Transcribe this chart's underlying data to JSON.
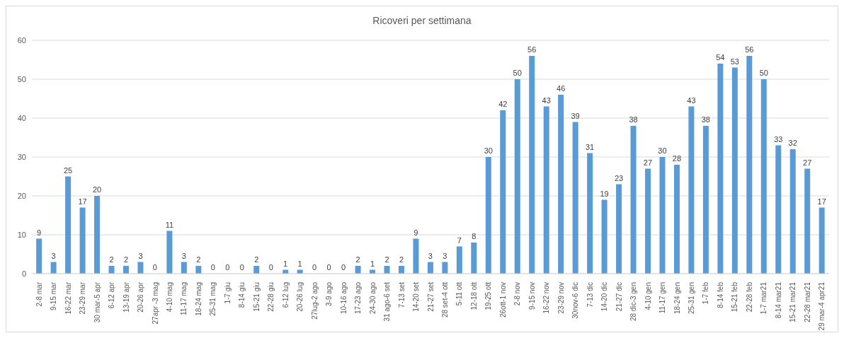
{
  "chart_data": {
    "type": "bar",
    "title": "Ricoveri per settimana",
    "categories": [
      "2-8 mar",
      "9-15 mar",
      "16-22 mar",
      "23-29 mar",
      "30 mar-5 apr",
      "6-12 apr",
      "13-19 apr",
      "20-26 apr",
      "27apr -3 mag",
      "4-10 mag",
      "11-17 mag",
      "18-24 mag",
      "25-31 mag",
      "1-7 giu",
      "8-14 giu",
      "15-21 giu",
      "22-28 giu",
      "6-12 lug",
      "20-26 lug",
      "27lug-2 ago",
      "3-9 ago",
      "10-16 ago",
      "17-23 ago",
      "24-30 ago",
      "31 ago-6 set",
      "7-13 set",
      "14-20 set",
      "21-27 set",
      "28 set-4 ott",
      "5-11 ott",
      "12-18 ott",
      "19-25 ott",
      "26ott-1 nov",
      "2-8 nov",
      "9-15 nov",
      "16-22 nov",
      "23-29 nov",
      "30nov-6 dic",
      "7-13 dic",
      "14-20 dic",
      "21-27 dic",
      "28 dic-3 gen",
      "4-10 gen",
      "11-17 gen",
      "18-24 gen",
      "25-31 gen",
      "1-7 feb",
      "8-14 feb",
      "15-21 feb",
      "22-28 feb",
      "1-7 mar21",
      "8-14 mar21",
      "15-21 mar21",
      "22-28 mar21",
      "29 mar-4 apr21"
    ],
    "values": [
      9,
      3,
      25,
      17,
      20,
      2,
      2,
      3,
      0,
      11,
      3,
      2,
      0,
      0,
      0,
      2,
      0,
      1,
      1,
      0,
      0,
      0,
      2,
      1,
      2,
      2,
      9,
      3,
      3,
      7,
      8,
      30,
      42,
      50,
      56,
      43,
      46,
      39,
      31,
      19,
      23,
      38,
      27,
      30,
      28,
      43,
      38,
      54,
      53,
      56,
      50,
      33,
      32,
      27,
      17
    ],
    "color": "#5b9bd5",
    "ylim": [
      0,
      60
    ],
    "yticks": [
      0,
      10,
      20,
      30,
      40,
      50,
      60
    ],
    "grid": "y",
    "data_labels": true
  }
}
